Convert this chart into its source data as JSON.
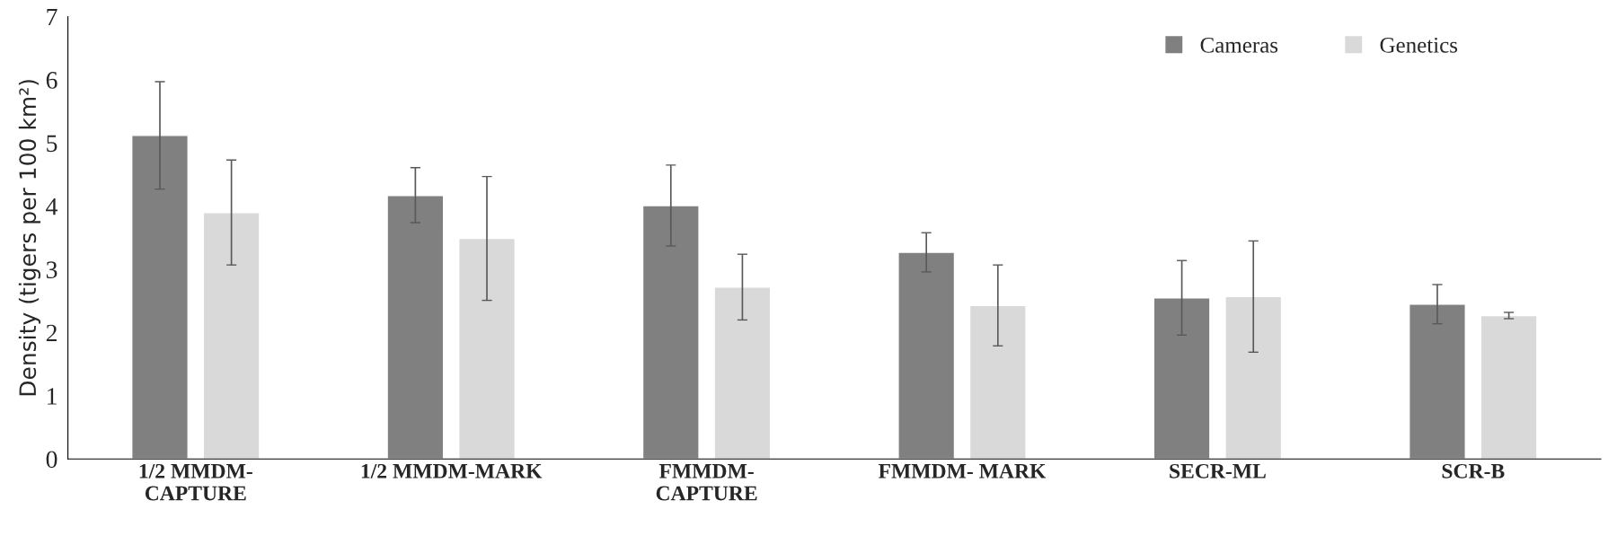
{
  "chart_data": {
    "type": "bar",
    "ylabel": "Density (tigers per 100 km²)",
    "categories": [
      "1/2 MMDM-\nCAPTURE",
      "1/2 MMDM-MARK",
      "FMMDM-\nCAPTURE",
      "FMMDM- MARK",
      "SECR-ML",
      "SCR-B"
    ],
    "series": [
      {
        "name": "Cameras",
        "color": "#808080",
        "values": [
          5.12,
          4.17,
          4.01,
          3.27,
          2.55,
          2.45
        ],
        "errors": [
          [
            4.27,
            5.97
          ],
          [
            3.74,
            4.61
          ],
          [
            3.37,
            4.65
          ],
          [
            2.96,
            3.58
          ],
          [
            1.96,
            3.14
          ],
          [
            2.14,
            2.76
          ]
        ]
      },
      {
        "name": "Genetics",
        "color": "#d9d9d9",
        "values": [
          3.9,
          3.49,
          2.72,
          2.43,
          2.57,
          2.27
        ],
        "errors": [
          [
            3.07,
            4.73
          ],
          [
            2.51,
            4.47
          ],
          [
            2.2,
            3.24
          ],
          [
            1.79,
            3.07
          ],
          [
            1.69,
            3.45
          ],
          [
            2.22,
            2.32
          ]
        ]
      }
    ],
    "ylim": [
      0,
      7
    ],
    "yticks": [
      0,
      1,
      2,
      3,
      4,
      5,
      6,
      7
    ],
    "grid": false,
    "legend": "top right"
  }
}
